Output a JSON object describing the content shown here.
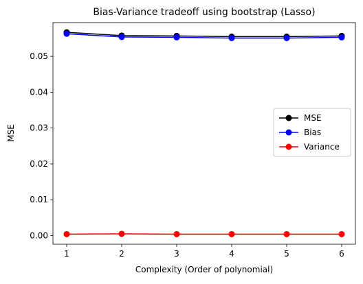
{
  "chart_data": {
    "type": "line",
    "title": "Bias-Variance tradeoff using bootstrap (Lasso)",
    "xlabel": "Complexity (Order of polynomial)",
    "ylabel": "MSE",
    "x": [
      1,
      2,
      3,
      4,
      5,
      6
    ],
    "xlim": [
      0.75,
      6.25
    ],
    "ylim": [
      -0.0024,
      0.0594
    ],
    "xticks": [
      1,
      2,
      3,
      4,
      5,
      6
    ],
    "yticks": [
      0.0,
      0.01,
      0.02,
      0.03,
      0.04,
      0.05
    ],
    "ytick_labels": [
      "0.00",
      "0.01",
      "0.02",
      "0.03",
      "0.04",
      "0.05"
    ],
    "grid": false,
    "legend_position": "center-right",
    "series": [
      {
        "name": "MSE",
        "color": "#000000",
        "marker": "circle",
        "values": [
          0.0567,
          0.0558,
          0.0557,
          0.0555,
          0.0555,
          0.0557
        ]
      },
      {
        "name": "Bias",
        "color": "#0000ff",
        "marker": "circle",
        "values": [
          0.0563,
          0.0554,
          0.0553,
          0.0551,
          0.0551,
          0.0553
        ]
      },
      {
        "name": "Variance",
        "color": "#ff0000",
        "marker": "circle",
        "values": [
          0.0004,
          0.0005,
          0.0004,
          0.0004,
          0.0004,
          0.0004
        ]
      }
    ]
  }
}
